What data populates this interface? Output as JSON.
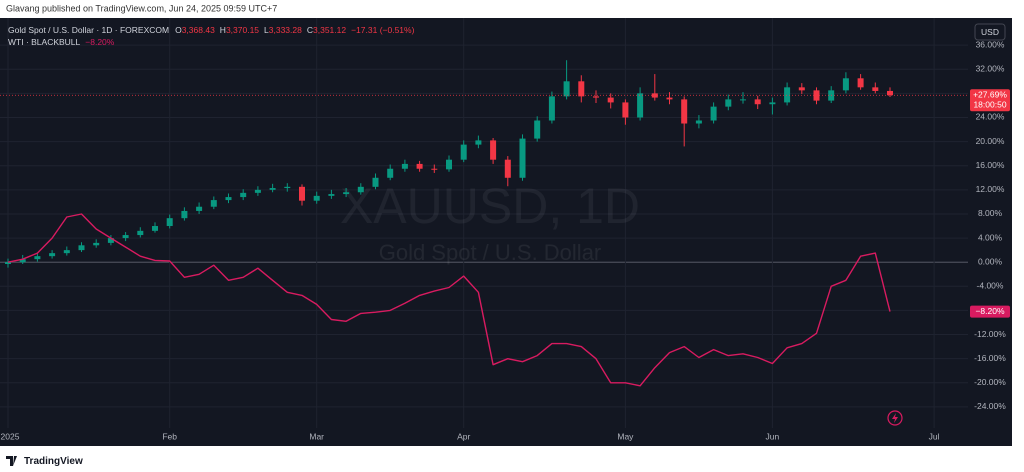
{
  "header": {
    "text": "Glavang published on TradingView.com, Jun 24, 2025 09:59 UTC+7"
  },
  "footer": {
    "brand": "TradingView"
  },
  "chart_data": {
    "type": "candlestick",
    "currency": "USD",
    "watermark": {
      "symbol": "XAUUSD, 1D",
      "description": "Gold Spot / U.S. Dollar"
    },
    "legend": {
      "ohlc": [
        {
          "key": "O",
          "value": "3,368.43"
        },
        {
          "key": "H",
          "value": "3,370.15"
        },
        {
          "key": "L",
          "value": "3,333.28"
        },
        {
          "key": "C",
          "value": "3,351.12"
        }
      ],
      "change": "−17.31 (−0.51%)",
      "wti_change": "−8.20%"
    },
    "price_tags": {
      "gold": "+27.69%",
      "countdown": "18:00:50",
      "wti": "−8.20%"
    },
    "categories": [
      "2025",
      null,
      null,
      null,
      null,
      null,
      null,
      null,
      null,
      null,
      null,
      "Feb",
      null,
      null,
      null,
      null,
      null,
      null,
      null,
      null,
      null,
      "Mar",
      null,
      null,
      null,
      null,
      null,
      null,
      null,
      null,
      null,
      "Apr",
      null,
      null,
      null,
      null,
      null,
      null,
      null,
      null,
      null,
      null,
      "May",
      null,
      null,
      null,
      null,
      null,
      null,
      null,
      null,
      null,
      "Jun",
      null,
      null,
      null,
      null,
      null,
      null,
      null,
      null,
      null,
      null,
      "Jul",
      null
    ],
    "ylim": [
      -27.5,
      40.5
    ],
    "yticks": [
      {
        "value": 36,
        "label": "36.00%"
      },
      {
        "value": 32,
        "label": "32.00%"
      },
      {
        "value": 28,
        "label": "28.00%"
      },
      {
        "value": 24,
        "label": "24.00%"
      },
      {
        "value": 20,
        "label": "20.00%"
      },
      {
        "value": 16,
        "label": "16.00%"
      },
      {
        "value": 12,
        "label": "12.00%"
      },
      {
        "value": 8,
        "label": "8.00%"
      },
      {
        "value": 4,
        "label": "4.00%"
      },
      {
        "value": 0,
        "label": "0.00%"
      },
      {
        "value": -4,
        "label": "-4.00%"
      },
      {
        "value": -8,
        "label": "-8.00%"
      },
      {
        "value": -12,
        "label": "-12.00%"
      },
      {
        "value": -16,
        "label": "-16.00%"
      },
      {
        "value": -20,
        "label": "-20.00%"
      },
      {
        "value": -24,
        "label": "-24.00%"
      }
    ],
    "grid": true,
    "series": [
      {
        "name": "Gold Spot / U.S. Dollar · 1D · FOREXCOM",
        "type": "candlestick",
        "up_color": "#089981",
        "down_color": "#f23645",
        "values": [
          [
            -0.3,
            0.6,
            -0.9,
            0
          ],
          [
            0,
            1.2,
            -0.3,
            0.5
          ],
          [
            0.5,
            1.6,
            0.1,
            1
          ],
          [
            1,
            2,
            0.6,
            1.5
          ],
          [
            1.5,
            2.6,
            1.1,
            2
          ],
          [
            2,
            3.3,
            1.7,
            2.8
          ],
          [
            2.8,
            3.8,
            2.4,
            3.2
          ],
          [
            3.2,
            4.5,
            2.8,
            4
          ],
          [
            4,
            5,
            3.5,
            4.5
          ],
          [
            4.5,
            5.8,
            4.1,
            5.2
          ],
          [
            5.2,
            6.6,
            4.9,
            6
          ],
          [
            6,
            7.9,
            5.6,
            7.3
          ],
          [
            7.3,
            9.1,
            6.9,
            8.5
          ],
          [
            8.5,
            9.9,
            8,
            9.2
          ],
          [
            9.2,
            10.9,
            8.8,
            10.3
          ],
          [
            10.3,
            11.4,
            9.8,
            10.8
          ],
          [
            10.8,
            12.1,
            10.3,
            11.5
          ],
          [
            11.5,
            12.6,
            11,
            12
          ],
          [
            12,
            13,
            11.6,
            12.3
          ],
          [
            12.3,
            13.1,
            11.7,
            12.5
          ],
          [
            12.5,
            12.9,
            9.4,
            10.2
          ],
          [
            10.2,
            11.7,
            9.7,
            11
          ],
          [
            11,
            12,
            10.5,
            11.3
          ],
          [
            11.3,
            12.3,
            10.8,
            11.6
          ],
          [
            11.6,
            13.1,
            11.2,
            12.5
          ],
          [
            12.5,
            14.7,
            12.1,
            14
          ],
          [
            14,
            16.2,
            13.6,
            15.5
          ],
          [
            15.5,
            17,
            15,
            16.3
          ],
          [
            16.3,
            16.8,
            15,
            15.5
          ],
          [
            15.5,
            16.2,
            14.8,
            15.4
          ],
          [
            15.4,
            17.7,
            15,
            17
          ],
          [
            17,
            20.2,
            16.6,
            19.5
          ],
          [
            19.5,
            21,
            18.9,
            20.2
          ],
          [
            20.2,
            20.6,
            16.3,
            17
          ],
          [
            17,
            17.6,
            12.6,
            14
          ],
          [
            14,
            21.2,
            13.5,
            20.5
          ],
          [
            20.5,
            24.2,
            20,
            23.5
          ],
          [
            23.5,
            28.3,
            23,
            27.5
          ],
          [
            27.5,
            33.5,
            27,
            30
          ],
          [
            30,
            31,
            26.5,
            27.5
          ],
          [
            27.5,
            28.5,
            26.4,
            27.3
          ],
          [
            27.3,
            28,
            25.5,
            26.5
          ],
          [
            26.5,
            27,
            22.8,
            24
          ],
          [
            24,
            29,
            23.5,
            28
          ],
          [
            28,
            31.2,
            26.8,
            27.3
          ],
          [
            27.3,
            28.2,
            26.2,
            27
          ],
          [
            27,
            27.5,
            19.2,
            23
          ],
          [
            23,
            24.4,
            22.2,
            23.5
          ],
          [
            23.5,
            26.5,
            23,
            25.8
          ],
          [
            25.8,
            27.8,
            25.2,
            27
          ],
          [
            27,
            28.2,
            26.3,
            27
          ],
          [
            27,
            27.6,
            25.4,
            26.2
          ],
          [
            26.2,
            27.3,
            24.5,
            26.5
          ],
          [
            26.5,
            29.8,
            26,
            29
          ],
          [
            29,
            29.7,
            27.9,
            28.5
          ],
          [
            28.5,
            29,
            26.2,
            26.8
          ],
          [
            26.8,
            29.2,
            26.4,
            28.5
          ],
          [
            28.5,
            31.5,
            28,
            30.5
          ],
          [
            30.5,
            31.2,
            28.6,
            29
          ],
          [
            29,
            29.8,
            28,
            28.4
          ],
          [
            28.4,
            29,
            27.4,
            27.69
          ],
          null,
          null,
          null,
          null
        ]
      },
      {
        "name": "WTI · BLACKBULL",
        "type": "line",
        "color": "#d81b60",
        "values": [
          0,
          0.5,
          1.5,
          4,
          7.5,
          8,
          5.5,
          4,
          2.5,
          1,
          0.3,
          0.2,
          -2.5,
          -2,
          -0.5,
          -3,
          -2.5,
          -1,
          -3,
          -5,
          -5.5,
          -7,
          -9.5,
          -9.8,
          -8.5,
          -8.3,
          -8,
          -6.8,
          -5.5,
          -4.8,
          -4.2,
          -2.3,
          -5,
          -17,
          -16,
          -16.5,
          -15.5,
          -13.5,
          -13.5,
          -14,
          -16,
          -20,
          -20,
          -20.5,
          -17.5,
          -15,
          -14,
          -15.8,
          -14.5,
          -15.5,
          -15.2,
          -15.8,
          -16.8,
          -14.2,
          -13.5,
          -11.8,
          -4,
          -3,
          1,
          1.5,
          -8.2,
          null,
          null,
          null,
          null
        ]
      }
    ]
  }
}
